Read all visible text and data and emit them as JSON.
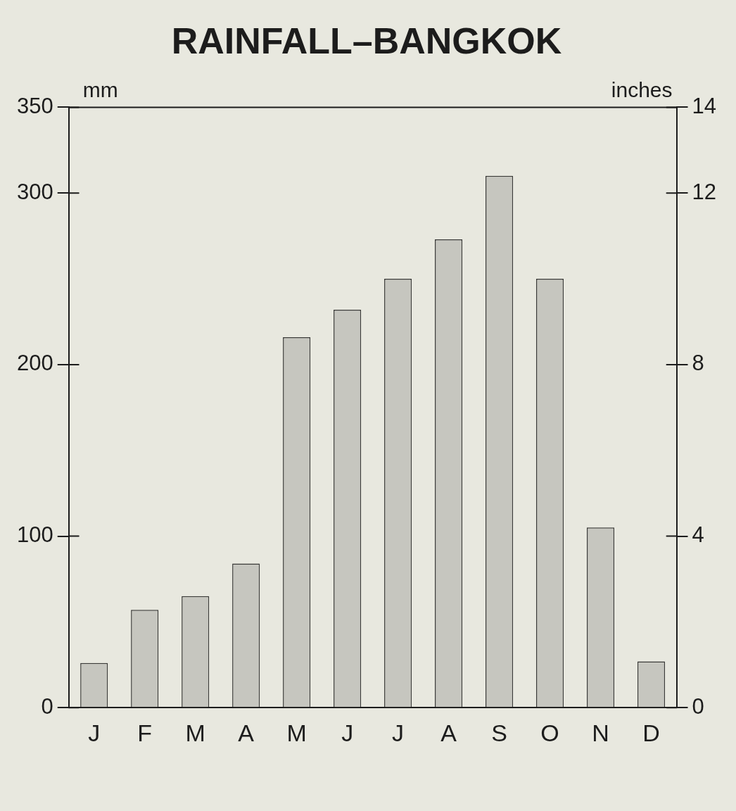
{
  "chart_data": {
    "type": "bar",
    "title": "RAINFALL–BANGKOK",
    "ylabel": "mm",
    "y2label": "inches",
    "categories": [
      "J",
      "F",
      "M",
      "A",
      "M",
      "J",
      "J",
      "A",
      "S",
      "O",
      "N",
      "D"
    ],
    "values": [
      26,
      57,
      65,
      84,
      216,
      232,
      250,
      273,
      310,
      250,
      105,
      27
    ],
    "color": "#c6c6bf",
    "ylim": [
      0,
      350
    ],
    "yticks": [
      0,
      100,
      200,
      300,
      350
    ],
    "y2lim": [
      0,
      14
    ],
    "y2ticks": [
      0,
      4,
      8,
      12,
      14
    ]
  }
}
